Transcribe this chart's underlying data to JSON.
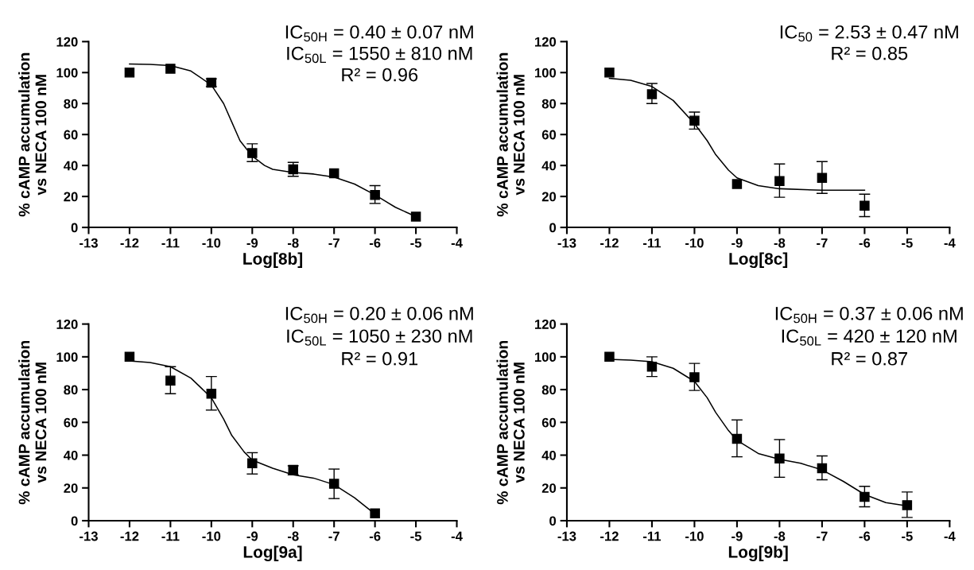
{
  "chart_data": [
    {
      "type": "scatter",
      "xlabel": "Log[8b]",
      "ylabel": "% cAMP accumulation\nvs NECA 100 nM",
      "xlim": [
        -13,
        -4
      ],
      "ylim": [
        0,
        120
      ],
      "xticks": [
        -13,
        -12,
        -11,
        -10,
        -9,
        -8,
        -7,
        -6,
        -5,
        -4
      ],
      "yticks": [
        0,
        20,
        40,
        60,
        80,
        100,
        120
      ],
      "grid": false,
      "marker": "square",
      "annotations": [
        "IC$_{50H}$ = 0.40 ± 0.07 nM",
        "IC$_{50L}$ = 1550 ± 810 nM",
        "R² = 0.96"
      ],
      "series": [
        {
          "color": "#000000",
          "x": [
            -12,
            -11,
            -10,
            -9,
            -8,
            -7,
            -6,
            -5
          ],
          "values": [
            100,
            102.5,
            93.5,
            48,
            37.5,
            35,
            21,
            7
          ],
          "errors": [
            null,
            null,
            [
              91,
              96
            ],
            [
              42.5,
              54
            ],
            [
              33,
              42
            ],
            null,
            [
              15.5,
              27
            ],
            null
          ]
        },
        {
          "type": "line",
          "color": "#000000",
          "marker": "none",
          "x": [
            -12,
            -11.5,
            -11,
            -10.5,
            -10,
            -9.7,
            -9.5,
            -9.3,
            -9,
            -8.7,
            -8.5,
            -8,
            -7.5,
            -7,
            -6.5,
            -6,
            -5.5,
            -5
          ],
          "values": [
            105.5,
            105.3,
            104.5,
            101,
            92,
            80,
            68,
            56,
            46,
            40,
            37.5,
            35.5,
            34.5,
            32.5,
            28,
            21,
            13,
            7
          ]
        }
      ]
    },
    {
      "type": "scatter",
      "xlabel": "Log[8c]",
      "ylabel": "% cAMP accumulation\nvs NECA 100 nM",
      "xlim": [
        -13,
        -4
      ],
      "ylim": [
        0,
        120
      ],
      "xticks": [
        -13,
        -12,
        -11,
        -10,
        -9,
        -8,
        -7,
        -6,
        -5,
        -4
      ],
      "yticks": [
        0,
        20,
        40,
        60,
        80,
        100,
        120
      ],
      "grid": false,
      "marker": "square",
      "annotations": [
        "IC$_{50}$ = 2.53 ± 0.47 nM",
        "R² = 0.85"
      ],
      "series": [
        {
          "color": "#000000",
          "x": [
            -12,
            -11,
            -10,
            -9,
            -8,
            -7,
            -6
          ],
          "values": [
            100,
            86,
            69,
            28,
            30,
            32,
            14
          ],
          "errors": [
            null,
            [
              80,
              93
            ],
            [
              63.5,
              74.5
            ],
            null,
            [
              19.5,
              41
            ],
            [
              22,
              42.5
            ],
            [
              7,
              21.5
            ]
          ]
        },
        {
          "type": "line",
          "color": "#000000",
          "marker": "none",
          "x": [
            -12,
            -11.5,
            -11,
            -10.5,
            -10,
            -9.7,
            -9.5,
            -9.2,
            -9,
            -8.5,
            -8,
            -7,
            -6
          ],
          "values": [
            96.3,
            95,
            91,
            82,
            67,
            56,
            47,
            37,
            32,
            27,
            25,
            24,
            24
          ]
        }
      ]
    },
    {
      "type": "scatter",
      "xlabel": "Log[9a]",
      "ylabel": "% cAMP accumulation\nvs NECA 100 nM",
      "xlim": [
        -13,
        -4
      ],
      "ylim": [
        0,
        120
      ],
      "xticks": [
        -13,
        -12,
        -11,
        -10,
        -9,
        -8,
        -7,
        -6,
        -5,
        -4
      ],
      "yticks": [
        0,
        20,
        40,
        60,
        80,
        100,
        120
      ],
      "grid": false,
      "marker": "square",
      "annotations": [
        "IC$_{50H}$ = 0.20 ± 0.06 nM",
        "IC$_{50L}$ = 1050 ± 230 nM",
        "R² = 0.91"
      ],
      "series": [
        {
          "color": "#000000",
          "x": [
            -12,
            -11,
            -10,
            -9,
            -8,
            -7,
            -6
          ],
          "values": [
            100,
            85.5,
            77.5,
            35,
            31,
            22.5,
            4.5
          ],
          "errors": [
            null,
            [
              77.5,
              94
            ],
            [
              67.5,
              88
            ],
            [
              28.5,
              41.5
            ],
            [
              28,
              33.5
            ],
            [
              13.5,
              31.5
            ],
            null
          ]
        },
        {
          "type": "line",
          "color": "#000000",
          "marker": "none",
          "x": [
            -12,
            -11.5,
            -11,
            -10.5,
            -10,
            -9.7,
            -9.5,
            -9.2,
            -9,
            -8.5,
            -8,
            -7.5,
            -7,
            -6.5,
            -6
          ],
          "values": [
            97.5,
            96.5,
            94,
            87,
            75,
            62,
            52,
            42,
            37,
            32,
            28,
            26,
            22,
            14,
            4
          ]
        }
      ]
    },
    {
      "type": "scatter",
      "xlabel": "Log[9b]",
      "ylabel": "% cAMP accumulation\nvs NECA 100 nM",
      "xlim": [
        -13,
        -4
      ],
      "ylim": [
        0,
        120
      ],
      "xticks": [
        -13,
        -12,
        -11,
        -10,
        -9,
        -8,
        -7,
        -6,
        -5,
        -4
      ],
      "yticks": [
        0,
        20,
        40,
        60,
        80,
        100,
        120
      ],
      "grid": false,
      "marker": "square",
      "annotations": [
        "IC$_{50H}$ = 0.37 ± 0.06 nM",
        "IC$_{50L}$ = 420 ± 120 nM",
        "R² = 0.87"
      ],
      "series": [
        {
          "color": "#000000",
          "x": [
            -12,
            -11,
            -10,
            -9,
            -8,
            -7,
            -6,
            -5
          ],
          "values": [
            100,
            94,
            87.5,
            50,
            38,
            32,
            14.5,
            9.5
          ],
          "errors": [
            null,
            [
              88,
              100
            ],
            [
              79.5,
              96
            ],
            [
              39,
              61.5
            ],
            [
              26.5,
              49.5
            ],
            [
              25,
              39.5
            ],
            [
              8.5,
              21
            ],
            [
              2,
              17.5
            ]
          ]
        },
        {
          "type": "line",
          "color": "#000000",
          "marker": "none",
          "x": [
            -12,
            -11.5,
            -11,
            -10.5,
            -10,
            -9.7,
            -9.5,
            -9.2,
            -9,
            -8.5,
            -8,
            -7.5,
            -7,
            -6.5,
            -6,
            -5.5,
            -5
          ],
          "values": [
            98.5,
            98,
            97,
            93,
            85,
            75,
            66,
            55,
            49,
            41,
            37.5,
            35,
            31,
            24,
            16,
            11,
            9
          ]
        }
      ]
    }
  ]
}
